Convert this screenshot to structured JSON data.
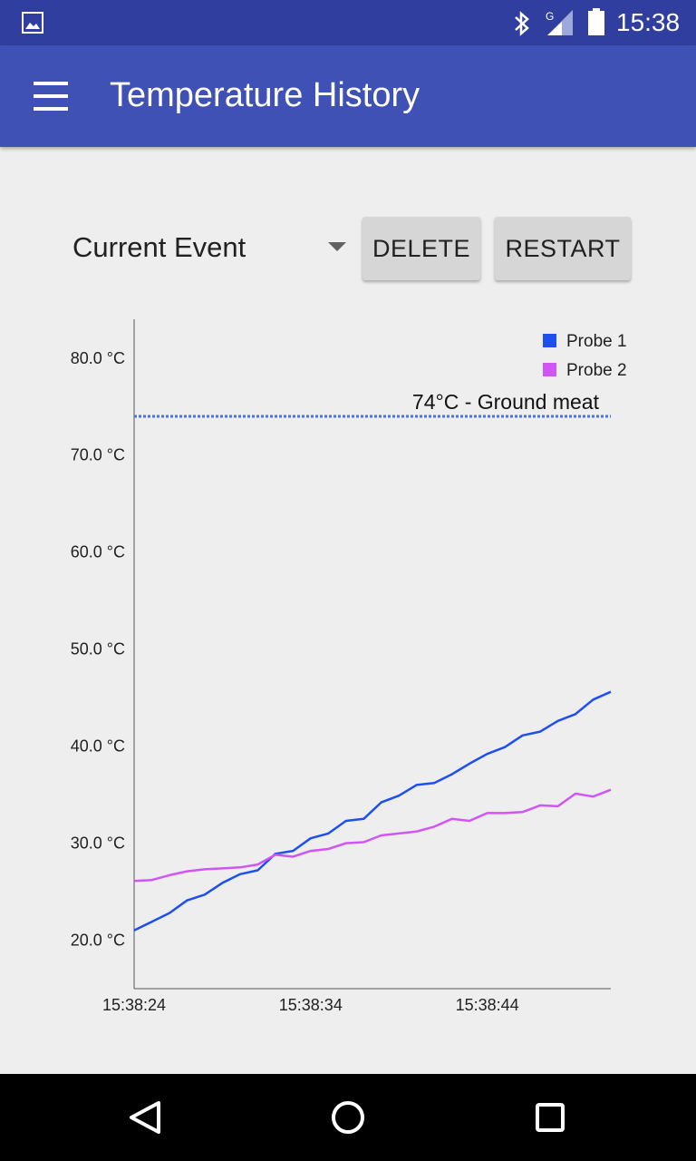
{
  "status_bar": {
    "time": "15:38",
    "network_label": "G",
    "icons": [
      "gallery-icon",
      "bluetooth-icon",
      "signal-icon",
      "battery-icon"
    ]
  },
  "app_bar": {
    "title": "Temperature History",
    "menu_icon": "hamburger-menu-icon"
  },
  "controls": {
    "event_selected": "Current Event",
    "delete_label": "DELETE",
    "restart_label": "RESTART"
  },
  "colors": {
    "status_bar": "#303f9f",
    "app_bar": "#3f51b5",
    "probe1": "#1e4ff0",
    "probe2": "#d155f5",
    "threshold": "#4a72e8"
  },
  "chart_data": {
    "type": "line",
    "title": "",
    "xlabel": "",
    "ylabel": "",
    "ylim": [
      15.0,
      84.0
    ],
    "yticks": [
      20.0,
      30.0,
      40.0,
      50.0,
      60.0,
      70.0,
      80.0
    ],
    "ytick_labels": [
      "20.0 °C",
      "30.0 °C",
      "40.0 °C",
      "50.0 °C",
      "60.0 °C",
      "70.0 °C",
      "80.0 °C"
    ],
    "xticks": [
      0,
      10,
      20
    ],
    "xtick_labels": [
      "15:38:24",
      "15:38:34",
      "15:38:44"
    ],
    "xlim": [
      0,
      27
    ],
    "legend_position": "top-right",
    "threshold": {
      "value": 74.0,
      "label": "74°C - Ground meat"
    },
    "series": [
      {
        "name": "Probe 1",
        "x": [
          0,
          1,
          2,
          3,
          4,
          5,
          6,
          7,
          8,
          9,
          10,
          11,
          12,
          13,
          14,
          15,
          16,
          17,
          18,
          19,
          20,
          21,
          22,
          23,
          24,
          25,
          26,
          27
        ],
        "values": [
          21.0,
          21.9,
          22.8,
          24.1,
          24.7,
          25.9,
          26.8,
          27.2,
          28.9,
          29.2,
          30.5,
          31.0,
          32.3,
          32.5,
          34.2,
          34.9,
          36.0,
          36.2,
          37.1,
          38.2,
          39.2,
          39.9,
          41.1,
          41.5,
          42.6,
          43.3,
          44.8,
          45.6
        ]
      },
      {
        "name": "Probe 2",
        "x": [
          0,
          1,
          2,
          3,
          4,
          5,
          6,
          7,
          8,
          9,
          10,
          11,
          12,
          13,
          14,
          15,
          16,
          17,
          18,
          19,
          20,
          21,
          22,
          23,
          24,
          25,
          26,
          27
        ],
        "values": [
          26.1,
          26.2,
          26.7,
          27.1,
          27.3,
          27.4,
          27.5,
          27.8,
          28.8,
          28.6,
          29.2,
          29.4,
          30.0,
          30.1,
          30.8,
          31.0,
          31.2,
          31.7,
          32.5,
          32.3,
          33.1,
          33.1,
          33.2,
          33.9,
          33.8,
          35.1,
          34.8,
          35.5
        ]
      }
    ]
  }
}
